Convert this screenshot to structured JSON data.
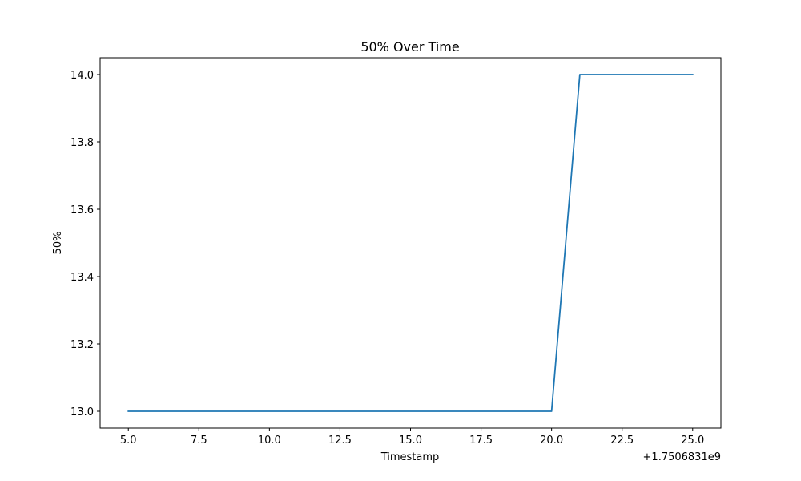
{
  "chart_data": {
    "type": "line",
    "title": "50% Over Time",
    "xlabel": "Timestamp",
    "ylabel": "50%",
    "x_offset_label": "+1.7506831e9",
    "xlim": [
      4.0,
      26.0
    ],
    "ylim": [
      12.95,
      14.05
    ],
    "x_ticks": [
      5.0,
      7.5,
      10.0,
      12.5,
      15.0,
      17.5,
      20.0,
      22.5,
      25.0
    ],
    "x_tick_labels": [
      "5.0",
      "7.5",
      "10.0",
      "12.5",
      "15.0",
      "17.5",
      "20.0",
      "22.5",
      "25.0"
    ],
    "y_ticks": [
      13.0,
      13.2,
      13.4,
      13.6,
      13.8,
      14.0
    ],
    "y_tick_labels": [
      "13.0",
      "13.2",
      "13.4",
      "13.6",
      "13.8",
      "14.0"
    ],
    "grid": false,
    "series": [
      {
        "color": "#1f77b4",
        "x": [
          5,
          6,
          7,
          8,
          9,
          10,
          11,
          12,
          13,
          14,
          15,
          16,
          17,
          18,
          19,
          20,
          21,
          22,
          23,
          24,
          25
        ],
        "y": [
          13,
          13,
          13,
          13,
          13,
          13,
          13,
          13,
          13,
          13,
          13,
          13,
          13,
          13,
          13,
          13,
          14,
          14,
          14,
          14,
          14
        ]
      }
    ]
  }
}
